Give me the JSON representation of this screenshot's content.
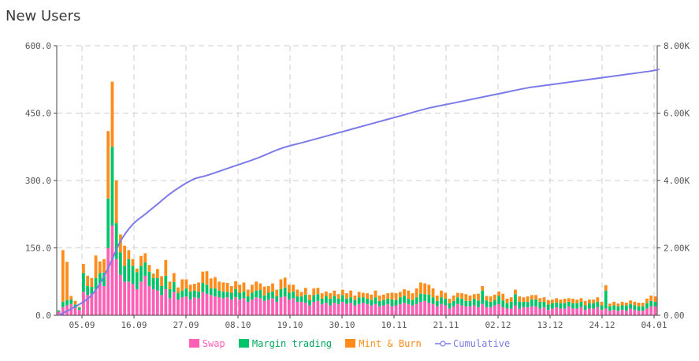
{
  "title": "New Users",
  "chart_data": {
    "type": "bar",
    "stacked": true,
    "title": "New Users",
    "x_tick_labels": [
      "05.09",
      "16.09",
      "27.09",
      "08.10",
      "19.10",
      "30.10",
      "10.11",
      "21.11",
      "02.12",
      "13.12",
      "24.12",
      "04.01"
    ],
    "ylim_left": [
      0,
      600
    ],
    "y_ticks_left": [
      "0.0",
      "150.0",
      "300.0",
      "450.0",
      "600.0"
    ],
    "ylim_right": [
      0,
      8000
    ],
    "y_ticks_right": [
      "0.00",
      "2.00K",
      "4.00K",
      "6.00K",
      "8.00K"
    ],
    "grid": true,
    "legend_position": "bottom",
    "series": [
      {
        "name": "Swap",
        "color": "#ff5fb4",
        "values": [
          8,
          18,
          22,
          25,
          16,
          12,
          52,
          45,
          48,
          58,
          72,
          65,
          150,
          200,
          125,
          90,
          75,
          75,
          70,
          58,
          75,
          88,
          65,
          58,
          55,
          45,
          58,
          38,
          52,
          35,
          40,
          42,
          35,
          40,
          38,
          52,
          48,
          45,
          42,
          40,
          38,
          40,
          35,
          40,
          35,
          38,
          30,
          35,
          40,
          38,
          32,
          35,
          38,
          30,
          40,
          42,
          35,
          38,
          30,
          30,
          28,
          22,
          30,
          32,
          25,
          28,
          22,
          28,
          25,
          30,
          25,
          28,
          22,
          25,
          28,
          25,
          22,
          25,
          20,
          22,
          25,
          20,
          22,
          25,
          28,
          25,
          22,
          25,
          30,
          32,
          28,
          25,
          20,
          25,
          22,
          15,
          20,
          25,
          22,
          20,
          20,
          22,
          18,
          25,
          18,
          18,
          22,
          25,
          18,
          15,
          15,
          22,
          15,
          18,
          18,
          20,
          20,
          15,
          18,
          12,
          15,
          18,
          15,
          15,
          20,
          15,
          15,
          18,
          12,
          15,
          15,
          18,
          12,
          15,
          10,
          12,
          10,
          12,
          10,
          15,
          12,
          10,
          10,
          15,
          20,
          20
        ]
      },
      {
        "name": "Margin trading",
        "color": "#00c46a",
        "values": [
          3,
          12,
          12,
          10,
          8,
          5,
          42,
          20,
          15,
          25,
          22,
          30,
          110,
          175,
          80,
          50,
          35,
          50,
          40,
          38,
          35,
          30,
          32,
          25,
          28,
          20,
          30,
          20,
          22,
          15,
          15,
          18,
          18,
          15,
          15,
          20,
          20,
          15,
          18,
          15,
          15,
          12,
          15,
          18,
          15,
          15,
          12,
          15,
          15,
          18,
          12,
          15,
          15,
          12,
          18,
          20,
          15,
          15,
          12,
          12,
          18,
          12,
          15,
          15,
          12,
          15,
          15,
          15,
          12,
          15,
          12,
          12,
          12,
          15,
          12,
          12,
          12,
          15,
          12,
          12,
          12,
          15,
          12,
          15,
          15,
          12,
          12,
          15,
          18,
          15,
          18,
          15,
          12,
          15,
          15,
          12,
          12,
          15,
          15,
          12,
          12,
          15,
          15,
          30,
          15,
          12,
          12,
          18,
          15,
          12,
          15,
          25,
          15,
          12,
          12,
          15,
          15,
          15,
          12,
          12,
          12,
          10,
          12,
          12,
          10,
          12,
          12,
          12,
          10,
          12,
          12,
          12,
          10,
          40,
          10,
          10,
          10,
          10,
          12,
          10,
          10,
          10,
          10,
          12,
          12,
          10
        ]
      },
      {
        "name": "Mint & Burn",
        "color": "#ff8c1a",
        "values": [
          0,
          115,
          85,
          8,
          8,
          2,
          20,
          23,
          20,
          50,
          26,
          30,
          150,
          145,
          95,
          40,
          45,
          20,
          15,
          8,
          22,
          20,
          15,
          10,
          20,
          22,
          35,
          17,
          20,
          12,
          25,
          20,
          15,
          15,
          20,
          25,
          30,
          22,
          25,
          20,
          20,
          20,
          15,
          18,
          18,
          20,
          15,
          18,
          20,
          15,
          20,
          15,
          18,
          15,
          22,
          22,
          18,
          15,
          15,
          10,
          15,
          12,
          15,
          14,
          12,
          10,
          12,
          12,
          10,
          12,
          12,
          15,
          10,
          12,
          10,
          12,
          12,
          15,
          12,
          12,
          12,
          15,
          15,
          12,
          15,
          18,
          15,
          20,
          25,
          24,
          22,
          20,
          12,
          15,
          13,
          10,
          12,
          10,
          12,
          15,
          12,
          10,
          15,
          10,
          10,
          12,
          12,
          10,
          15,
          10,
          10,
          10,
          12,
          10,
          12,
          10,
          10,
          8,
          10,
          10,
          8,
          10,
          8,
          10,
          8,
          10,
          8,
          8,
          10,
          8,
          8,
          10,
          8,
          12,
          6,
          8,
          6,
          8,
          6,
          8,
          8,
          8,
          8,
          10,
          12,
          12
        ]
      },
      {
        "name": "Cumulative",
        "color": "#7b7bea",
        "axis": "right",
        "x_index": [
          0,
          6,
          9,
          12,
          15,
          18,
          21,
          24,
          27,
          30,
          33,
          36,
          42,
          48,
          54,
          60,
          66,
          72,
          78,
          84,
          90,
          96,
          102,
          108,
          114,
          120,
          126,
          132,
          138,
          144,
          146
        ],
        "values": [
          0,
          400,
          750,
          1400,
          2200,
          2700,
          3000,
          3300,
          3600,
          3850,
          4050,
          4150,
          4400,
          4650,
          4950,
          5150,
          5350,
          5550,
          5750,
          5950,
          6150,
          6300,
          6450,
          6600,
          6750,
          6850,
          6950,
          7050,
          7150,
          7250,
          7300
        ]
      }
    ]
  }
}
